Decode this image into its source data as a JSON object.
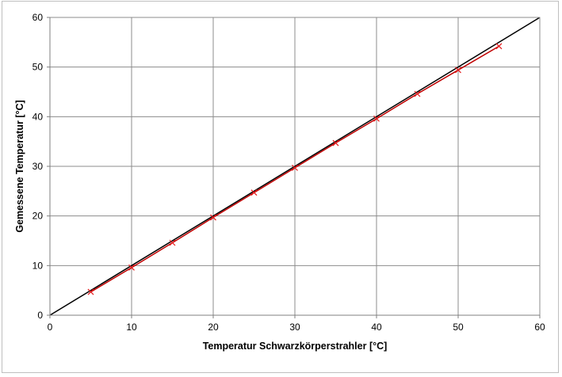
{
  "chart_data": {
    "type": "scatter",
    "title": "",
    "xlabel": "Temperatur Schwarzkörperstrahler [°C]",
    "ylabel": "Gemessene Temperatur [°C]",
    "xlim": [
      0,
      60
    ],
    "ylim": [
      0,
      60
    ],
    "xticks": [
      0,
      10,
      20,
      30,
      40,
      50,
      60
    ],
    "yticks": [
      0,
      10,
      20,
      30,
      40,
      50,
      60
    ],
    "grid": true,
    "legend": "none",
    "series": [
      {
        "kind": "line",
        "color": "#000000",
        "x": [
          0,
          60
        ],
        "y": [
          0,
          60
        ]
      },
      {
        "kind": "line+markers",
        "marker": "x",
        "color": "#e41a1c",
        "line_color": "#c00000",
        "x": [
          5,
          10,
          15,
          20,
          25,
          30,
          35,
          40,
          45,
          50,
          55
        ],
        "y": [
          4.7,
          9.6,
          14.6,
          19.7,
          24.7,
          29.7,
          34.7,
          39.6,
          44.6,
          49.4,
          54.2
        ]
      }
    ]
  }
}
